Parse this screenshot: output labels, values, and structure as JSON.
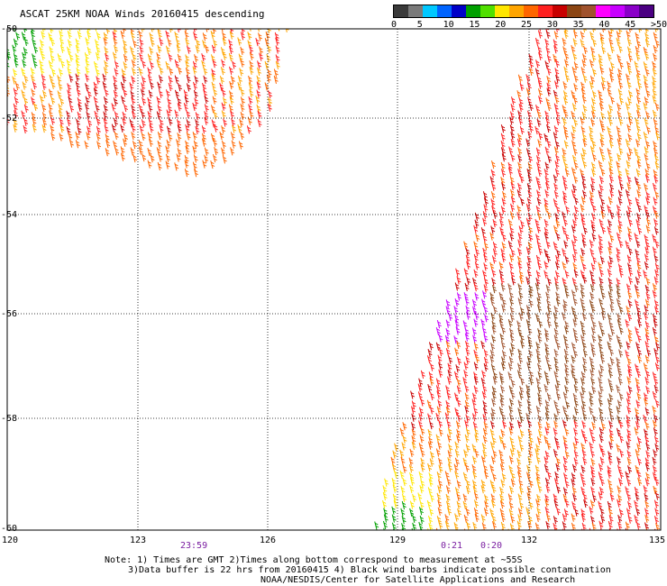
{
  "title": "ASCAT 25KM NOAA Winds 20160415 descending",
  "scale": {
    "colors": [
      "#3a3a3a",
      "#7a7a7a",
      "#00c8ff",
      "#0064ff",
      "#0000c8",
      "#00a000",
      "#50e000",
      "#ffe600",
      "#ffa500",
      "#ff6600",
      "#ff2020",
      "#c80000",
      "#8b4513",
      "#a0522d",
      "#ff00ff",
      "#c800ff",
      "#8a00c8",
      "#4b0082"
    ],
    "labels": [
      "0",
      "5",
      "10",
      "15",
      "20",
      "25",
      "30",
      "35",
      "40",
      "45",
      ">50 knots"
    ]
  },
  "map": {
    "lat_labels": [
      "-50",
      "-52",
      "-54",
      "-56",
      "-58",
      "-60"
    ],
    "lon_labels": [
      "120",
      "123",
      "126",
      "129",
      "132",
      "135"
    ],
    "time_labels": [
      "23:59",
      "0:21",
      "0:20"
    ]
  },
  "notes": {
    "line1": "Note: 1) Times are GMT 2)Times along bottom correspond to measurement at ~55S",
    "line2": "3)Data buffer is 22 hrs from 20160415 4) Black wind barbs indicate possible contamination",
    "line3": "NOAA/NESDIS/Center for Satellite Applications and Research"
  }
}
